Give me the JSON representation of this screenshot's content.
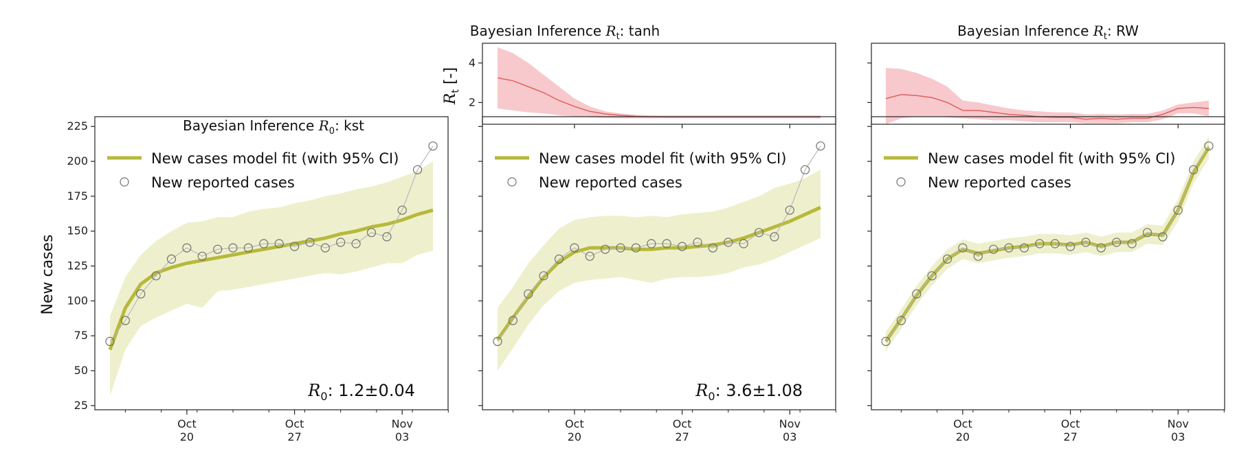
{
  "chart_data": [
    {
      "panel": "kst",
      "type": "line",
      "title_prefix": "Bayesian Inference ",
      "title_symbol": "R",
      "title_sub": "0",
      "title_suffix": ": kst",
      "ylabel": "New cases",
      "ylim": [
        22,
        232
      ],
      "yticks": [
        25,
        50,
        75,
        100,
        125,
        150,
        175,
        200,
        225
      ],
      "x_ticks": [
        {
          "day": 5,
          "line1": "Oct",
          "line2": "20"
        },
        {
          "day": 12,
          "line1": "Oct",
          "line2": "27"
        },
        {
          "day": 19,
          "line1": "Nov",
          "line2": "03"
        }
      ],
      "legend": {
        "fit": "New cases model fit (with 95% CI)",
        "reported": "New reported cases"
      },
      "annotation": {
        "symbol": "R",
        "sub": "0",
        "text": ": 1.2±0.04"
      },
      "reported_cases": [
        71,
        86,
        105,
        118,
        130,
        138,
        132,
        137,
        138,
        138,
        141,
        141,
        139,
        142,
        138,
        142,
        141,
        149,
        146,
        165,
        194,
        211
      ],
      "model_fit": [
        65,
        95,
        112,
        120,
        124,
        127,
        129,
        131,
        133,
        135,
        137,
        139,
        141,
        143,
        145,
        148,
        150,
        153,
        155,
        158,
        162,
        165
      ],
      "ci_low": [
        32,
        65,
        82,
        88,
        93,
        98,
        95,
        107,
        108,
        110,
        112,
        114,
        116,
        118,
        120,
        119,
        121,
        124,
        127,
        127,
        133,
        136
      ],
      "ci_high": [
        89,
        117,
        133,
        143,
        150,
        156,
        157,
        160,
        160,
        164,
        166,
        167,
        170,
        172,
        175,
        177,
        180,
        182,
        185,
        189,
        193,
        200
      ]
    },
    {
      "panel": "tanh",
      "type": "line",
      "title_prefix": "Bayesian Inference ",
      "title_symbol": "R",
      "title_sub": "t",
      "title_suffix": ": tanh",
      "ylim": [
        22,
        232
      ],
      "x_ticks": [
        {
          "day": 5,
          "line1": "Oct",
          "line2": "20"
        },
        {
          "day": 12,
          "line1": "Oct",
          "line2": "27"
        },
        {
          "day": 19,
          "line1": "Nov",
          "line2": "03"
        }
      ],
      "legend": {
        "fit": "New cases model fit (with 95% CI)",
        "reported": "New reported cases"
      },
      "annotation": {
        "symbol": "R",
        "sub": "0",
        "text": ": 3.6±1.08"
      },
      "reported_cases": [
        71,
        86,
        105,
        118,
        130,
        138,
        132,
        137,
        138,
        138,
        141,
        141,
        139,
        142,
        138,
        142,
        141,
        149,
        146,
        165,
        194,
        211
      ],
      "model_fit": [
        72,
        88,
        103,
        117,
        128,
        135,
        138,
        138,
        138,
        137,
        137,
        138,
        138,
        139,
        140,
        142,
        145,
        149,
        153,
        157,
        162,
        167
      ],
      "ci_low": [
        50,
        66,
        83,
        97,
        107,
        113,
        115,
        116,
        117,
        115,
        113,
        116,
        117,
        117,
        118,
        120,
        124,
        126,
        130,
        135,
        140,
        145
      ],
      "ci_high": [
        95,
        110,
        127,
        140,
        152,
        158,
        160,
        161,
        161,
        160,
        161,
        160,
        162,
        163,
        164,
        167,
        171,
        175,
        181,
        184,
        188,
        194
      ],
      "rt": {
        "ylabel_symbol": "R",
        "ylabel_sub": "t",
        "ylabel_suffix": " [-]",
        "ylim": [
          0.9,
          5.0
        ],
        "yticks": [
          2,
          4
        ],
        "values": [
          3.25,
          3.1,
          2.8,
          2.5,
          2.1,
          1.8,
          1.55,
          1.42,
          1.35,
          1.3,
          1.28,
          1.27,
          1.27,
          1.27,
          1.27,
          1.27,
          1.27,
          1.27,
          1.27,
          1.27,
          1.27,
          1.27
        ],
        "low": [
          1.7,
          1.6,
          1.5,
          1.45,
          1.35,
          1.3,
          1.25,
          1.22,
          1.2,
          1.2,
          1.2,
          1.2,
          1.2,
          1.2,
          1.2,
          1.2,
          1.2,
          1.2,
          1.2,
          1.2,
          1.2,
          1.2
        ],
        "high": [
          4.8,
          4.5,
          4.0,
          3.4,
          2.8,
          2.2,
          1.8,
          1.55,
          1.45,
          1.38,
          1.35,
          1.34,
          1.34,
          1.34,
          1.34,
          1.34,
          1.34,
          1.34,
          1.34,
          1.34,
          1.34,
          1.34
        ]
      }
    },
    {
      "panel": "RW",
      "type": "line",
      "title_prefix": "Bayesian Inference ",
      "title_symbol": "R",
      "title_sub": "t",
      "title_suffix": ": RW",
      "ylim": [
        22,
        232
      ],
      "x_ticks": [
        {
          "day": 5,
          "line1": "Oct",
          "line2": "20"
        },
        {
          "day": 12,
          "line1": "Oct",
          "line2": "27"
        },
        {
          "day": 19,
          "line1": "Nov",
          "line2": "03"
        }
      ],
      "legend": {
        "fit": "New cases model fit (with 95% CI)",
        "reported": "New reported cases"
      },
      "reported_cases": [
        71,
        86,
        105,
        118,
        130,
        138,
        132,
        137,
        138,
        138,
        141,
        141,
        139,
        142,
        138,
        142,
        141,
        149,
        146,
        165,
        194,
        211
      ],
      "model_fit": [
        71,
        87,
        104,
        118,
        130,
        137,
        134,
        136,
        138,
        139,
        141,
        141,
        140,
        142,
        139,
        142,
        142,
        148,
        147,
        165,
        192,
        210
      ],
      "ci_low": [
        64,
        80,
        97,
        111,
        123,
        130,
        127,
        129,
        131,
        132,
        134,
        134,
        133,
        135,
        132,
        135,
        135,
        141,
        140,
        157,
        184,
        202
      ],
      "ci_high": [
        78,
        94,
        111,
        125,
        137,
        144,
        141,
        143,
        145,
        146,
        148,
        148,
        147,
        149,
        146,
        149,
        149,
        155,
        154,
        173,
        200,
        218
      ],
      "rt": {
        "ylim": [
          0.9,
          5.0
        ],
        "yticks": [
          2,
          4
        ],
        "values": [
          2.2,
          2.4,
          2.35,
          2.25,
          2.0,
          1.6,
          1.6,
          1.5,
          1.4,
          1.35,
          1.28,
          1.25,
          1.25,
          1.15,
          1.2,
          1.15,
          1.2,
          1.2,
          1.4,
          1.7,
          1.75,
          1.7
        ],
        "low": [
          0.9,
          1.2,
          1.3,
          1.3,
          1.25,
          1.2,
          1.15,
          1.1,
          1.1,
          1.05,
          1.0,
          1.0,
          1.0,
          0.95,
          0.95,
          0.95,
          1.0,
          1.0,
          1.15,
          1.45,
          1.45,
          1.3
        ],
        "high": [
          3.75,
          3.7,
          3.5,
          3.2,
          2.8,
          2.1,
          2.0,
          1.85,
          1.7,
          1.6,
          1.55,
          1.5,
          1.5,
          1.4,
          1.42,
          1.4,
          1.42,
          1.42,
          1.6,
          1.9,
          2.0,
          2.1
        ]
      }
    }
  ],
  "colors": {
    "fit": "#b7b93b",
    "fit_band": "#eef0cd",
    "reported_line": "#b8b8b8",
    "marker": "#707070",
    "rt": "#e06060",
    "rt_band": "#f7c9cc"
  }
}
